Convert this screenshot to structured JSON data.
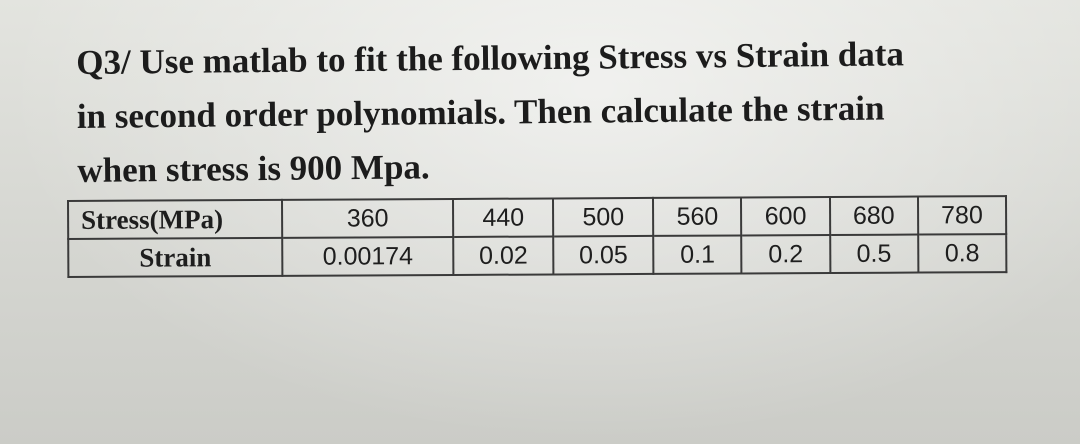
{
  "question": {
    "lines": [
      "Q3/ Use matlab to fit the following Stress vs Strain data",
      "in second order polynomials. Then calculate the strain",
      "when stress is 900 Mpa."
    ]
  },
  "table": {
    "rows": [
      {
        "label": "Stress(MPa)",
        "values": [
          "360",
          "440",
          "500",
          "560",
          "600",
          "680",
          "780"
        ]
      },
      {
        "label": "Strain",
        "values": [
          "0.00174",
          "0.02",
          "0.05",
          "0.1",
          "0.2",
          "0.5",
          "0.8"
        ]
      }
    ]
  }
}
